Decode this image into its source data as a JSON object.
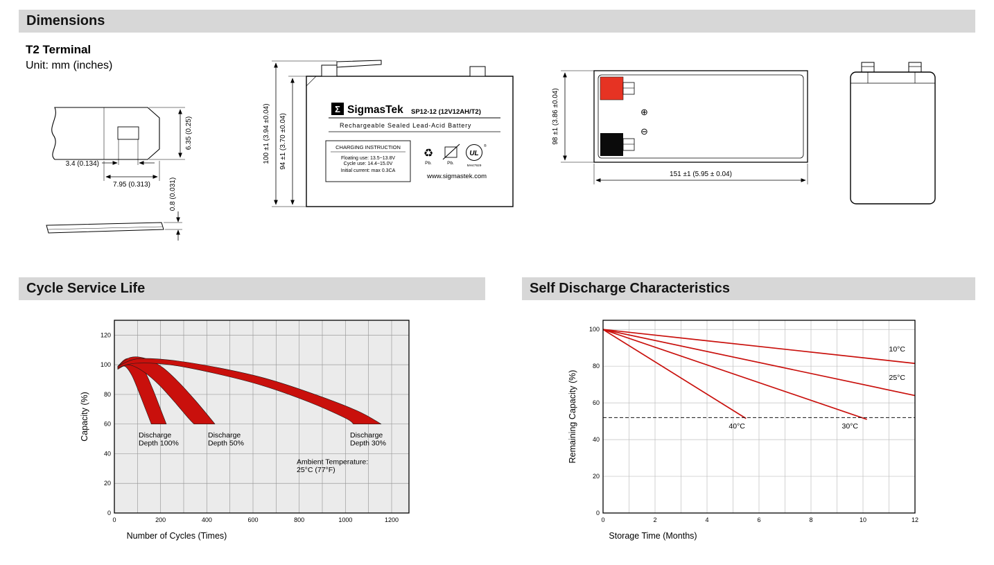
{
  "palette": {
    "bar_bg": "#d7d7d7",
    "chart_red": "#c9100c",
    "terminal_red": "#e63323"
  },
  "headers": {
    "dimensions": "Dimensions",
    "cycle_life": "Cycle Service Life",
    "self_discharge": "Self Discharge Characteristics"
  },
  "dims": {
    "subtitle": "T2 Terminal",
    "unit_note": "Unit: mm (inches)",
    "terminal": {
      "height": "6.35 (0.25)",
      "pin_width": "3.4 (0.134)",
      "tab_width": "7.95 (0.313)",
      "thickness": "0.8 (0.031)"
    },
    "front": {
      "overall_height": "100 ±1 (3.94 ±0.04)",
      "case_height": "94 ±1 (3.70 ±0.04)",
      "logo_glyph": "Σ",
      "brand": "SigmasTek",
      "model": "SP12-12 (12V12AH/T2)",
      "type_line": "Rechargeable Sealed Lead-Acid Battery",
      "charging_title": "CHARGING INSTRUCTION",
      "charging_line1": "Floating use: 13.5~13.8V",
      "charging_line2": "Cycle use: 14.4~15.0V",
      "charging_line3": "Initial current: max 0.3CA",
      "recycle_glyph": "♻",
      "recycle_icon_label": "Pb.",
      "bin_icon_label": "Pb.",
      "ul_mark": "UL",
      "ul_reg": "®",
      "ul_code": "MH47929",
      "website": "www.sigmastek.com"
    },
    "top": {
      "depth": "98 ±1 (3.86 ±0.04)",
      "length": "151 ±1 (5.95 ± 0.04)",
      "positive_symbol": "⊕",
      "negative_symbol": "⊖"
    }
  },
  "chart_data": [
    {
      "type": "area",
      "title": "Cycle Service Life",
      "xlabel": "Number of Cycles (Times)",
      "ylabel": "Capacity (%)",
      "xlim": [
        0,
        1275
      ],
      "ylim": [
        0,
        130
      ],
      "xticks": [
        0,
        200,
        400,
        600,
        800,
        1000,
        1200
      ],
      "yticks": [
        0,
        20,
        40,
        60,
        80,
        100,
        120
      ],
      "grid_x_step": 100,
      "grid_y_step": 20,
      "grid_color": "#9c9c9c",
      "plot_bg": "#ebebeb",
      "band_color": "#c9100c",
      "legend_position": "none",
      "series": [
        {
          "name": "Discharge Depth 100%",
          "upper": [
            [
              15,
              99
            ],
            [
              50,
              104
            ],
            [
              90,
              103
            ],
            [
              130,
              96
            ],
            [
              165,
              84
            ],
            [
              195,
              72
            ],
            [
              225,
              60
            ]
          ],
          "lower": [
            [
              15,
              97
            ],
            [
              45,
              99
            ],
            [
              75,
              93
            ],
            [
              105,
              82
            ],
            [
              135,
              70
            ],
            [
              160,
              60
            ]
          ]
        },
        {
          "name": "Discharge Depth 50%",
          "upper": [
            [
              15,
              99
            ],
            [
              70,
              105
            ],
            [
              140,
              104
            ],
            [
              210,
              98
            ],
            [
              280,
              88
            ],
            [
              350,
              76
            ],
            [
              420,
              63
            ],
            [
              435,
              60
            ]
          ],
          "lower": [
            [
              15,
              97
            ],
            [
              60,
              100
            ],
            [
              120,
              96
            ],
            [
              190,
              87
            ],
            [
              260,
              75
            ],
            [
              320,
              64
            ],
            [
              345,
              60
            ]
          ]
        },
        {
          "name": "Discharge Depth 30%",
          "upper": [
            [
              15,
              99
            ],
            [
              100,
              104
            ],
            [
              250,
              103
            ],
            [
              450,
              98
            ],
            [
              650,
              91
            ],
            [
              850,
              81
            ],
            [
              1050,
              69
            ],
            [
              1155,
              60
            ]
          ],
          "lower": [
            [
              15,
              98
            ],
            [
              90,
              101
            ],
            [
              240,
              100
            ],
            [
              440,
              94
            ],
            [
              640,
              86
            ],
            [
              840,
              75
            ],
            [
              1000,
              64
            ],
            [
              1035,
              60
            ]
          ]
        }
      ],
      "annotations": [
        {
          "lines": [
            "Discharge",
            "Depth 100%"
          ],
          "x": 105,
          "y": 51,
          "anchor": "start"
        },
        {
          "lines": [
            "Discharge",
            "Depth 50%"
          ],
          "x": 405,
          "y": 51,
          "anchor": "start"
        },
        {
          "lines": [
            "Discharge",
            "Depth 30%"
          ],
          "x": 1020,
          "y": 51,
          "anchor": "start"
        },
        {
          "lines": [
            "Ambient Temperature:",
            "25°C (77°F)"
          ],
          "x": 789,
          "y": 33,
          "anchor": "start"
        }
      ]
    },
    {
      "type": "line",
      "title": "Self Discharge Characteristics",
      "xlabel": "Storage Time (Months)",
      "ylabel": "Remaining Capacity (%)",
      "xlim": [
        0,
        12
      ],
      "ylim": [
        0,
        105
      ],
      "xticks": [
        0,
        2,
        4,
        6,
        8,
        10,
        12
      ],
      "yticks": [
        0,
        20,
        40,
        60,
        80,
        100
      ],
      "grid_x_step": 1,
      "grid_y_step": 20,
      "grid_color": "#bfbfbf",
      "plot_bg": "#ffffff",
      "line_color": "#c9100c",
      "dashed_y": 52,
      "legend_position": "none",
      "series": [
        {
          "name": "10°C",
          "points": [
            [
              0,
              100
            ],
            [
              12,
              81.5
            ]
          ],
          "label": {
            "text": "10°C",
            "x": 11.0,
            "y": 88,
            "anchor": "start"
          }
        },
        {
          "name": "25°C",
          "points": [
            [
              0,
              100
            ],
            [
              12,
              64
            ]
          ],
          "label": {
            "text": "25°C",
            "x": 11.0,
            "y": 72.5,
            "anchor": "start"
          }
        },
        {
          "name": "30°C",
          "points": [
            [
              0,
              100
            ],
            [
              10.15,
              51
            ]
          ],
          "label": {
            "text": "30°C",
            "x": 9.5,
            "y": 46,
            "anchor": "middle"
          }
        },
        {
          "name": "40°C",
          "points": [
            [
              0,
              100
            ],
            [
              5.5,
              51.5
            ]
          ],
          "label": {
            "text": "40°C",
            "x": 5.15,
            "y": 46,
            "anchor": "middle"
          }
        }
      ]
    }
  ]
}
